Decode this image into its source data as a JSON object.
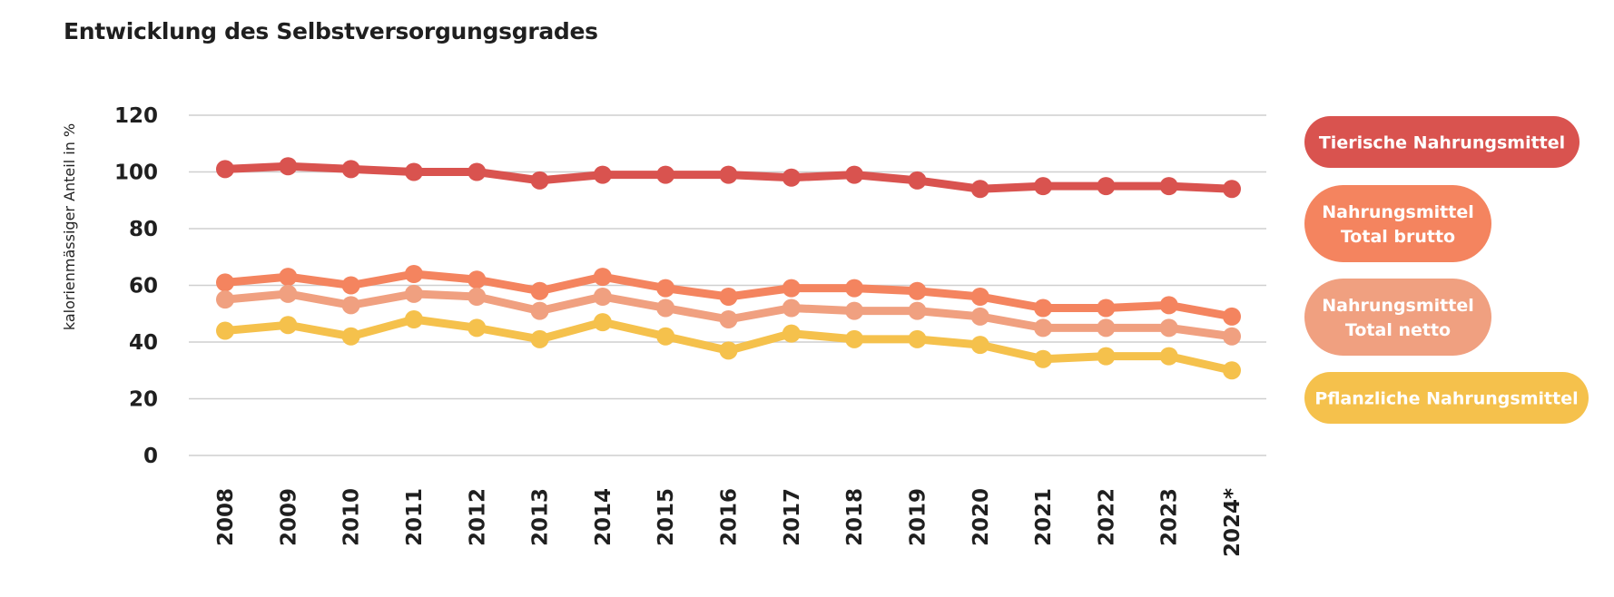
{
  "chart_data": {
    "type": "line",
    "title": "Entwicklung des Selbstversorgungsgrades",
    "xlabel": "",
    "ylabel": "kalorienmässiger Anteil in %",
    "ylim": [
      0,
      120
    ],
    "yticks": [
      0,
      20,
      40,
      60,
      80,
      100,
      120
    ],
    "grid": true,
    "legend_position": "right",
    "categories": [
      "2008",
      "2009",
      "2010",
      "2011",
      "2012",
      "2013",
      "2014",
      "2015",
      "2016",
      "2017",
      "2018",
      "2019",
      "2020",
      "2021",
      "2022",
      "2023",
      "2024*"
    ],
    "series": [
      {
        "name": "Tierische Nahrungsmittel",
        "color": "#d9534f",
        "values": [
          101,
          102,
          101,
          100,
          100,
          97,
          99,
          99,
          99,
          98,
          99,
          97,
          94,
          95,
          95,
          95,
          94
        ]
      },
      {
        "name": "Nahrungsmittel Total brutto",
        "color": "#f4845f",
        "values": [
          61,
          63,
          60,
          64,
          62,
          58,
          63,
          59,
          56,
          59,
          59,
          58,
          56,
          52,
          52,
          53,
          49
        ]
      },
      {
        "name": "Nahrungsmittel Total netto",
        "color": "#f0a080",
        "values": [
          55,
          57,
          53,
          57,
          56,
          51,
          56,
          52,
          48,
          52,
          51,
          51,
          49,
          45,
          45,
          45,
          42
        ]
      },
      {
        "name": "Pflanzliche Nahrungsmittel",
        "color": "#f5c14c",
        "values": [
          44,
          46,
          42,
          48,
          45,
          41,
          47,
          42,
          37,
          43,
          41,
          41,
          39,
          34,
          35,
          35,
          30
        ]
      }
    ]
  }
}
